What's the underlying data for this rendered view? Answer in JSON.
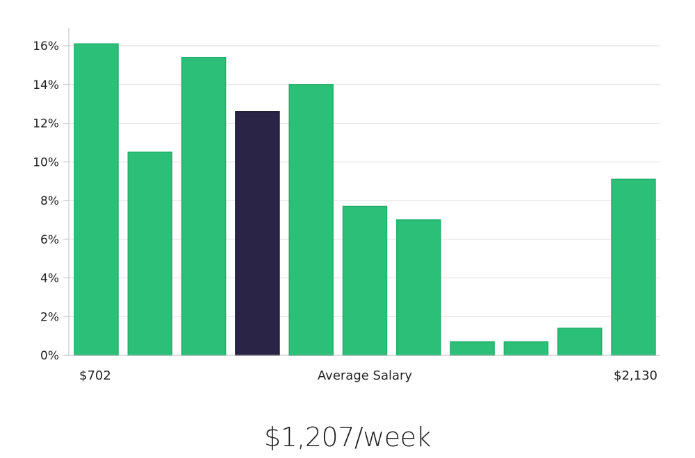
{
  "chart_data": {
    "type": "bar",
    "values": [
      16.1,
      10.5,
      15.4,
      12.6,
      14.0,
      7.7,
      7.0,
      0.7,
      0.7,
      1.4,
      9.1
    ],
    "highlight_index": 3,
    "ylim": [
      0,
      16.8
    ],
    "yticks": [
      0,
      2,
      4,
      6,
      8,
      10,
      12,
      14,
      16
    ],
    "ytick_labels": [
      "0%",
      "2%",
      "4%",
      "6%",
      "8%",
      "10%",
      "12%",
      "14%",
      "16%"
    ],
    "x_min_label": "$702",
    "x_center_label": "Average Salary",
    "x_max_label": "$2,130",
    "grid": true,
    "colors": {
      "bar": "#2bbf77",
      "highlight": "#2a2547",
      "grid": "#dddddd",
      "axis": "#bbbbbb"
    }
  },
  "headline": "$1,207/week"
}
